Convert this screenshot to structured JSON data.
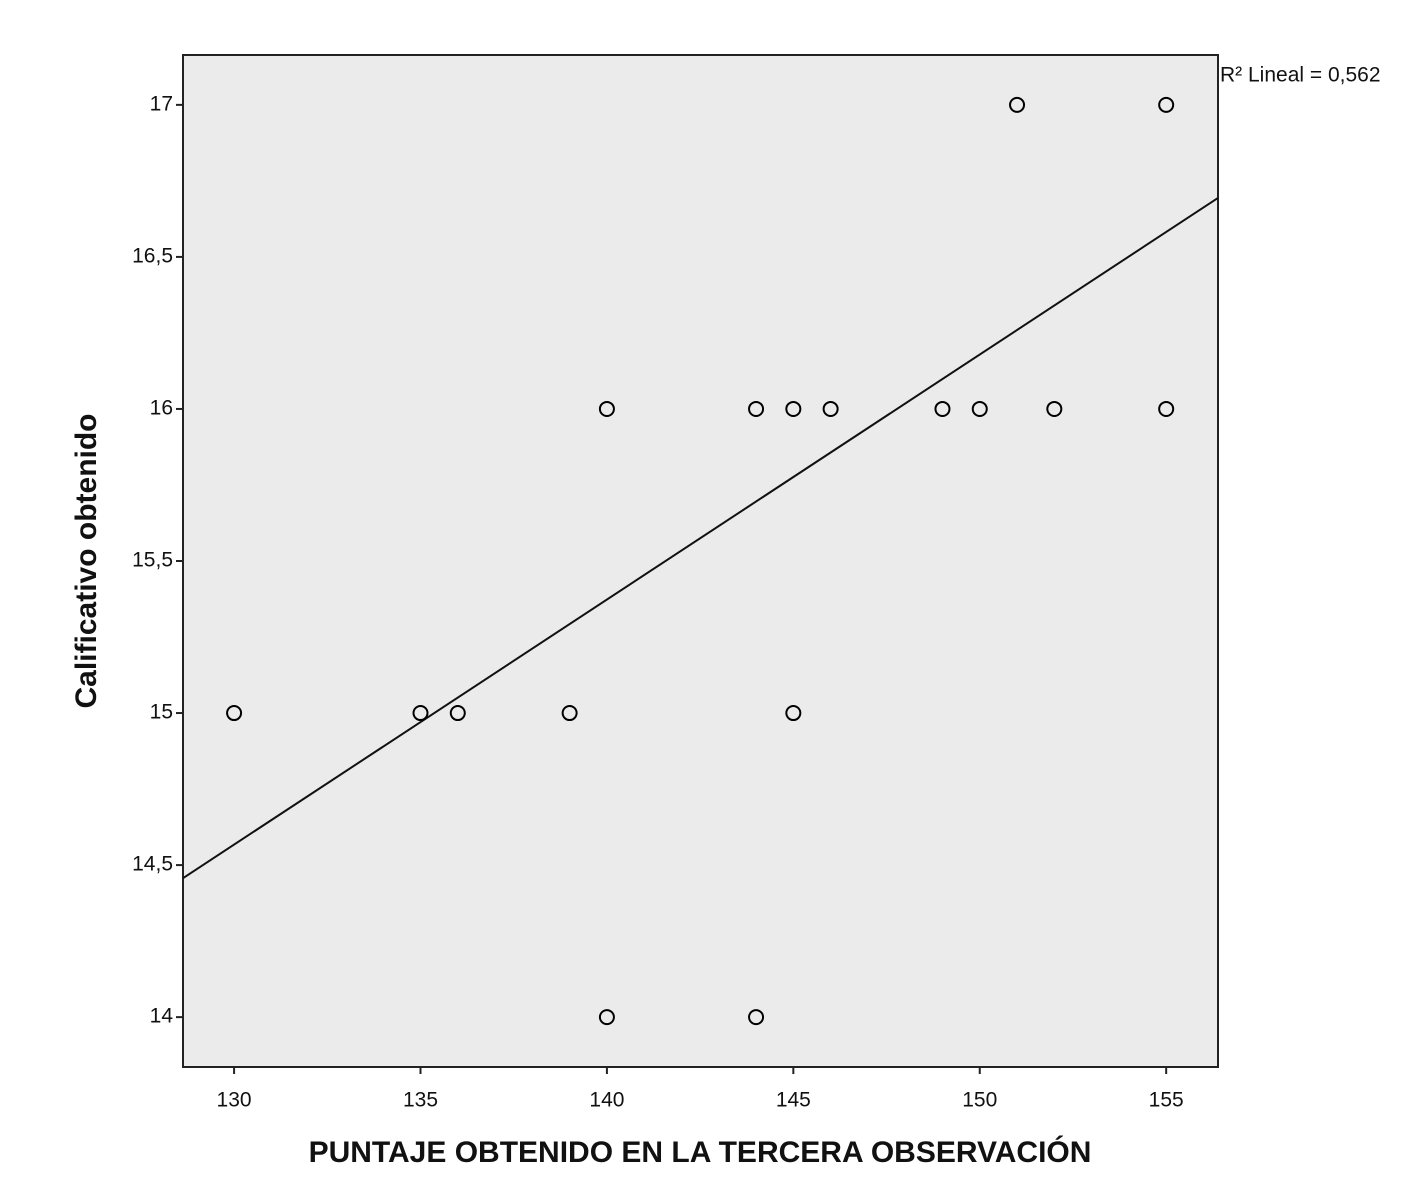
{
  "chart_data": {
    "type": "scatter",
    "x_label": "PUNTAJE OBTENIDO EN LA TERCERA OBSERVACIÓN",
    "y_label": "Calificativo obtenido",
    "annotation": "R² Lineal = 0,562",
    "x": [
      130,
      135,
      136,
      139,
      145,
      140,
      144,
      145,
      146,
      149,
      150,
      152,
      155,
      151,
      155,
      140,
      144
    ],
    "y": [
      15,
      15,
      15,
      15,
      15,
      16,
      16,
      16,
      16,
      16,
      16,
      16,
      16,
      17,
      17,
      14,
      14
    ],
    "color": "#000000",
    "fit_line": {
      "x": [
        128.63,
        156.39
      ],
      "y": [
        14.457,
        16.694
      ]
    },
    "xlim": [
      128.63,
      156.39
    ],
    "ylim": [
      13.836,
      17.164
    ],
    "xticks": [
      130,
      135,
      140,
      145,
      150,
      155
    ],
    "yticks": [
      14,
      {
        "value": 14.5,
        "label": "14,5"
      },
      15,
      {
        "value": 15.5,
        "label": "15,5"
      },
      16,
      {
        "value": 16.5,
        "label": "16,5"
      },
      17
    ]
  }
}
